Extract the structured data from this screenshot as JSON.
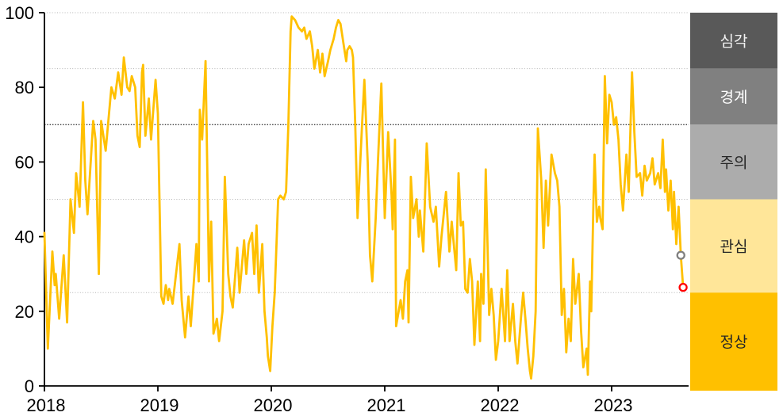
{
  "chart_data": {
    "type": "line",
    "title": "",
    "xlabel": "",
    "ylabel": "",
    "xlim": [
      2018,
      2023.7
    ],
    "ylim": [
      0,
      100
    ],
    "y_ticks": [
      0,
      20,
      40,
      60,
      80,
      100
    ],
    "x_ticks": [
      2018,
      2019,
      2020,
      2021,
      2022,
      2023
    ],
    "gridlines": [
      100,
      85,
      50,
      25
    ],
    "emphasized_gridline": 70,
    "grid_color": "#b3b3b3",
    "emphasized_grid_color": "#404040",
    "axis_color": "#000000",
    "line_color": "#FFC000",
    "bands": [
      {
        "label": "심각",
        "from": 85,
        "to": 100,
        "color": "#595959",
        "text_color": "#f2f2f2"
      },
      {
        "label": "경계",
        "from": 70,
        "to": 85,
        "color": "#808080",
        "text_color": "#ffffff"
      },
      {
        "label": "주의",
        "from": 50,
        "to": 70,
        "color": "#acacac",
        "text_color": "#262626"
      },
      {
        "label": "관심",
        "from": 25,
        "to": 50,
        "color": "#ffe699",
        "text_color": "#262626"
      },
      {
        "label": "정상",
        "from": 0,
        "to": 25,
        "color": "#ffc000",
        "text_color": "#262626"
      }
    ],
    "markers": [
      {
        "name": "previous-point",
        "x": 2023.61,
        "y": 35,
        "color": "#7f7f7f",
        "fill": "#ffffff"
      },
      {
        "name": "latest-point",
        "x": 2023.63,
        "y": 26.4,
        "color": "#ff0000",
        "fill": "#ffffff"
      }
    ],
    "series": [
      {
        "name": "risk-index",
        "points": [
          [
            2018.0,
            41
          ],
          [
            2018.03,
            10
          ],
          [
            2018.07,
            36
          ],
          [
            2018.09,
            27
          ],
          [
            2018.1,
            30
          ],
          [
            2018.13,
            18
          ],
          [
            2018.17,
            35
          ],
          [
            2018.2,
            17
          ],
          [
            2018.23,
            50
          ],
          [
            2018.26,
            41
          ],
          [
            2018.28,
            57
          ],
          [
            2018.31,
            48
          ],
          [
            2018.34,
            76
          ],
          [
            2018.36,
            55
          ],
          [
            2018.38,
            46
          ],
          [
            2018.43,
            71
          ],
          [
            2018.45,
            66
          ],
          [
            2018.48,
            30
          ],
          [
            2018.5,
            71
          ],
          [
            2018.54,
            63
          ],
          [
            2018.59,
            80
          ],
          [
            2018.62,
            77
          ],
          [
            2018.65,
            84
          ],
          [
            2018.68,
            78
          ],
          [
            2018.7,
            88
          ],
          [
            2018.73,
            80
          ],
          [
            2018.75,
            79
          ],
          [
            2018.77,
            83
          ],
          [
            2018.8,
            80
          ],
          [
            2018.82,
            67
          ],
          [
            2018.84,
            64
          ],
          [
            2018.86,
            84
          ],
          [
            2018.87,
            86
          ],
          [
            2018.89,
            67
          ],
          [
            2018.92,
            77
          ],
          [
            2018.94,
            66
          ],
          [
            2018.98,
            82
          ],
          [
            2019.0,
            73
          ],
          [
            2019.03,
            24
          ],
          [
            2019.05,
            22
          ],
          [
            2019.07,
            27
          ],
          [
            2019.09,
            23
          ],
          [
            2019.1,
            26
          ],
          [
            2019.13,
            22
          ],
          [
            2019.19,
            38
          ],
          [
            2019.21,
            23
          ],
          [
            2019.24,
            13
          ],
          [
            2019.27,
            24
          ],
          [
            2019.29,
            16
          ],
          [
            2019.34,
            38
          ],
          [
            2019.36,
            28
          ],
          [
            2019.37,
            74
          ],
          [
            2019.39,
            66
          ],
          [
            2019.42,
            87
          ],
          [
            2019.44,
            50
          ],
          [
            2019.45,
            28
          ],
          [
            2019.47,
            44
          ],
          [
            2019.49,
            14
          ],
          [
            2019.52,
            18
          ],
          [
            2019.54,
            12
          ],
          [
            2019.57,
            20
          ],
          [
            2019.59,
            56
          ],
          [
            2019.62,
            30
          ],
          [
            2019.64,
            24
          ],
          [
            2019.66,
            21
          ],
          [
            2019.7,
            37
          ],
          [
            2019.72,
            25
          ],
          [
            2019.76,
            39
          ],
          [
            2019.78,
            30
          ],
          [
            2019.8,
            38
          ],
          [
            2019.83,
            41
          ],
          [
            2019.85,
            30
          ],
          [
            2019.87,
            43
          ],
          [
            2019.89,
            25
          ],
          [
            2019.92,
            38
          ],
          [
            2019.94,
            20
          ],
          [
            2019.96,
            13
          ],
          [
            2019.97,
            8
          ],
          [
            2019.99,
            4
          ],
          [
            2020.01,
            16
          ],
          [
            2020.03,
            25
          ],
          [
            2020.06,
            50
          ],
          [
            2020.08,
            51
          ],
          [
            2020.11,
            50
          ],
          [
            2020.13,
            52
          ],
          [
            2020.15,
            70
          ],
          [
            2020.17,
            95
          ],
          [
            2020.18,
            99
          ],
          [
            2020.21,
            98
          ],
          [
            2020.24,
            96
          ],
          [
            2020.27,
            95
          ],
          [
            2020.29,
            96
          ],
          [
            2020.31,
            93
          ],
          [
            2020.34,
            95
          ],
          [
            2020.36,
            91
          ],
          [
            2020.38,
            85
          ],
          [
            2020.41,
            90
          ],
          [
            2020.43,
            84
          ],
          [
            2020.45,
            89
          ],
          [
            2020.47,
            83
          ],
          [
            2020.5,
            87
          ],
          [
            2020.52,
            90
          ],
          [
            2020.55,
            93
          ],
          [
            2020.57,
            96
          ],
          [
            2020.59,
            98
          ],
          [
            2020.61,
            97
          ],
          [
            2020.64,
            91
          ],
          [
            2020.66,
            87
          ],
          [
            2020.67,
            90
          ],
          [
            2020.69,
            91
          ],
          [
            2020.71,
            90
          ],
          [
            2020.72,
            88
          ],
          [
            2020.74,
            70
          ],
          [
            2020.76,
            45
          ],
          [
            2020.8,
            70
          ],
          [
            2020.82,
            82
          ],
          [
            2020.85,
            60
          ],
          [
            2020.87,
            35
          ],
          [
            2020.89,
            28
          ],
          [
            2020.92,
            45
          ],
          [
            2020.94,
            60
          ],
          [
            2020.97,
            81
          ],
          [
            2021.0,
            45
          ],
          [
            2021.03,
            68
          ],
          [
            2021.06,
            51
          ],
          [
            2021.07,
            42
          ],
          [
            2021.09,
            66
          ],
          [
            2021.1,
            16
          ],
          [
            2021.14,
            23
          ],
          [
            2021.16,
            18
          ],
          [
            2021.18,
            28
          ],
          [
            2021.2,
            31
          ],
          [
            2021.21,
            17
          ],
          [
            2021.23,
            56
          ],
          [
            2021.25,
            45
          ],
          [
            2021.28,
            50
          ],
          [
            2021.3,
            40
          ],
          [
            2021.31,
            47
          ],
          [
            2021.34,
            36
          ],
          [
            2021.37,
            65
          ],
          [
            2021.4,
            48
          ],
          [
            2021.43,
            44
          ],
          [
            2021.45,
            48
          ],
          [
            2021.48,
            32
          ],
          [
            2021.5,
            40
          ],
          [
            2021.54,
            52
          ],
          [
            2021.57,
            36
          ],
          [
            2021.59,
            44
          ],
          [
            2021.63,
            31
          ],
          [
            2021.65,
            57
          ],
          [
            2021.67,
            43
          ],
          [
            2021.69,
            44
          ],
          [
            2021.71,
            26
          ],
          [
            2021.73,
            25
          ],
          [
            2021.75,
            34
          ],
          [
            2021.77,
            28
          ],
          [
            2021.79,
            11
          ],
          [
            2021.82,
            28
          ],
          [
            2021.84,
            12
          ],
          [
            2021.85,
            30
          ],
          [
            2021.87,
            22
          ],
          [
            2021.89,
            58
          ],
          [
            2021.92,
            19
          ],
          [
            2021.94,
            26
          ],
          [
            2021.96,
            19
          ],
          [
            2021.98,
            7
          ],
          [
            2022.0,
            12
          ],
          [
            2022.03,
            26
          ],
          [
            2022.06,
            12
          ],
          [
            2022.08,
            31
          ],
          [
            2022.1,
            12
          ],
          [
            2022.13,
            22
          ],
          [
            2022.15,
            12
          ],
          [
            2022.17,
            6
          ],
          [
            2022.2,
            18
          ],
          [
            2022.22,
            25
          ],
          [
            2022.24,
            18
          ],
          [
            2022.26,
            10
          ],
          [
            2022.28,
            4
          ],
          [
            2022.29,
            2
          ],
          [
            2022.31,
            8
          ],
          [
            2022.33,
            20
          ],
          [
            2022.35,
            69
          ],
          [
            2022.38,
            55
          ],
          [
            2022.4,
            37
          ],
          [
            2022.42,
            55
          ],
          [
            2022.44,
            43
          ],
          [
            2022.47,
            62
          ],
          [
            2022.5,
            57
          ],
          [
            2022.52,
            55
          ],
          [
            2022.54,
            48
          ],
          [
            2022.56,
            19
          ],
          [
            2022.58,
            26
          ],
          [
            2022.6,
            9
          ],
          [
            2022.62,
            18
          ],
          [
            2022.64,
            12
          ],
          [
            2022.66,
            34
          ],
          [
            2022.68,
            22
          ],
          [
            2022.71,
            30
          ],
          [
            2022.73,
            15
          ],
          [
            2022.75,
            5
          ],
          [
            2022.78,
            10
          ],
          [
            2022.79,
            3
          ],
          [
            2022.81,
            28
          ],
          [
            2022.82,
            20
          ],
          [
            2022.84,
            50
          ],
          [
            2022.85,
            62
          ],
          [
            2022.87,
            44
          ],
          [
            2022.89,
            48
          ],
          [
            2022.9,
            45
          ],
          [
            2022.92,
            42
          ],
          [
            2022.94,
            83
          ],
          [
            2022.96,
            65
          ],
          [
            2022.98,
            78
          ],
          [
            2023.0,
            76
          ],
          [
            2023.02,
            70
          ],
          [
            2023.04,
            72
          ],
          [
            2023.06,
            66
          ],
          [
            2023.08,
            54
          ],
          [
            2023.1,
            47
          ],
          [
            2023.13,
            62
          ],
          [
            2023.15,
            52
          ],
          [
            2023.18,
            84
          ],
          [
            2023.2,
            68
          ],
          [
            2023.22,
            56
          ],
          [
            2023.25,
            57
          ],
          [
            2023.27,
            51
          ],
          [
            2023.29,
            59
          ],
          [
            2023.31,
            55
          ],
          [
            2023.34,
            57
          ],
          [
            2023.36,
            61
          ],
          [
            2023.38,
            54
          ],
          [
            2023.41,
            57
          ],
          [
            2023.43,
            53
          ],
          [
            2023.45,
            66
          ],
          [
            2023.47,
            52
          ],
          [
            2023.48,
            58
          ],
          [
            2023.5,
            47
          ],
          [
            2023.52,
            55
          ],
          [
            2023.54,
            42
          ],
          [
            2023.55,
            52
          ],
          [
            2023.57,
            38
          ],
          [
            2023.59,
            48
          ],
          [
            2023.61,
            35
          ],
          [
            2023.63,
            26.4
          ]
        ]
      }
    ]
  }
}
